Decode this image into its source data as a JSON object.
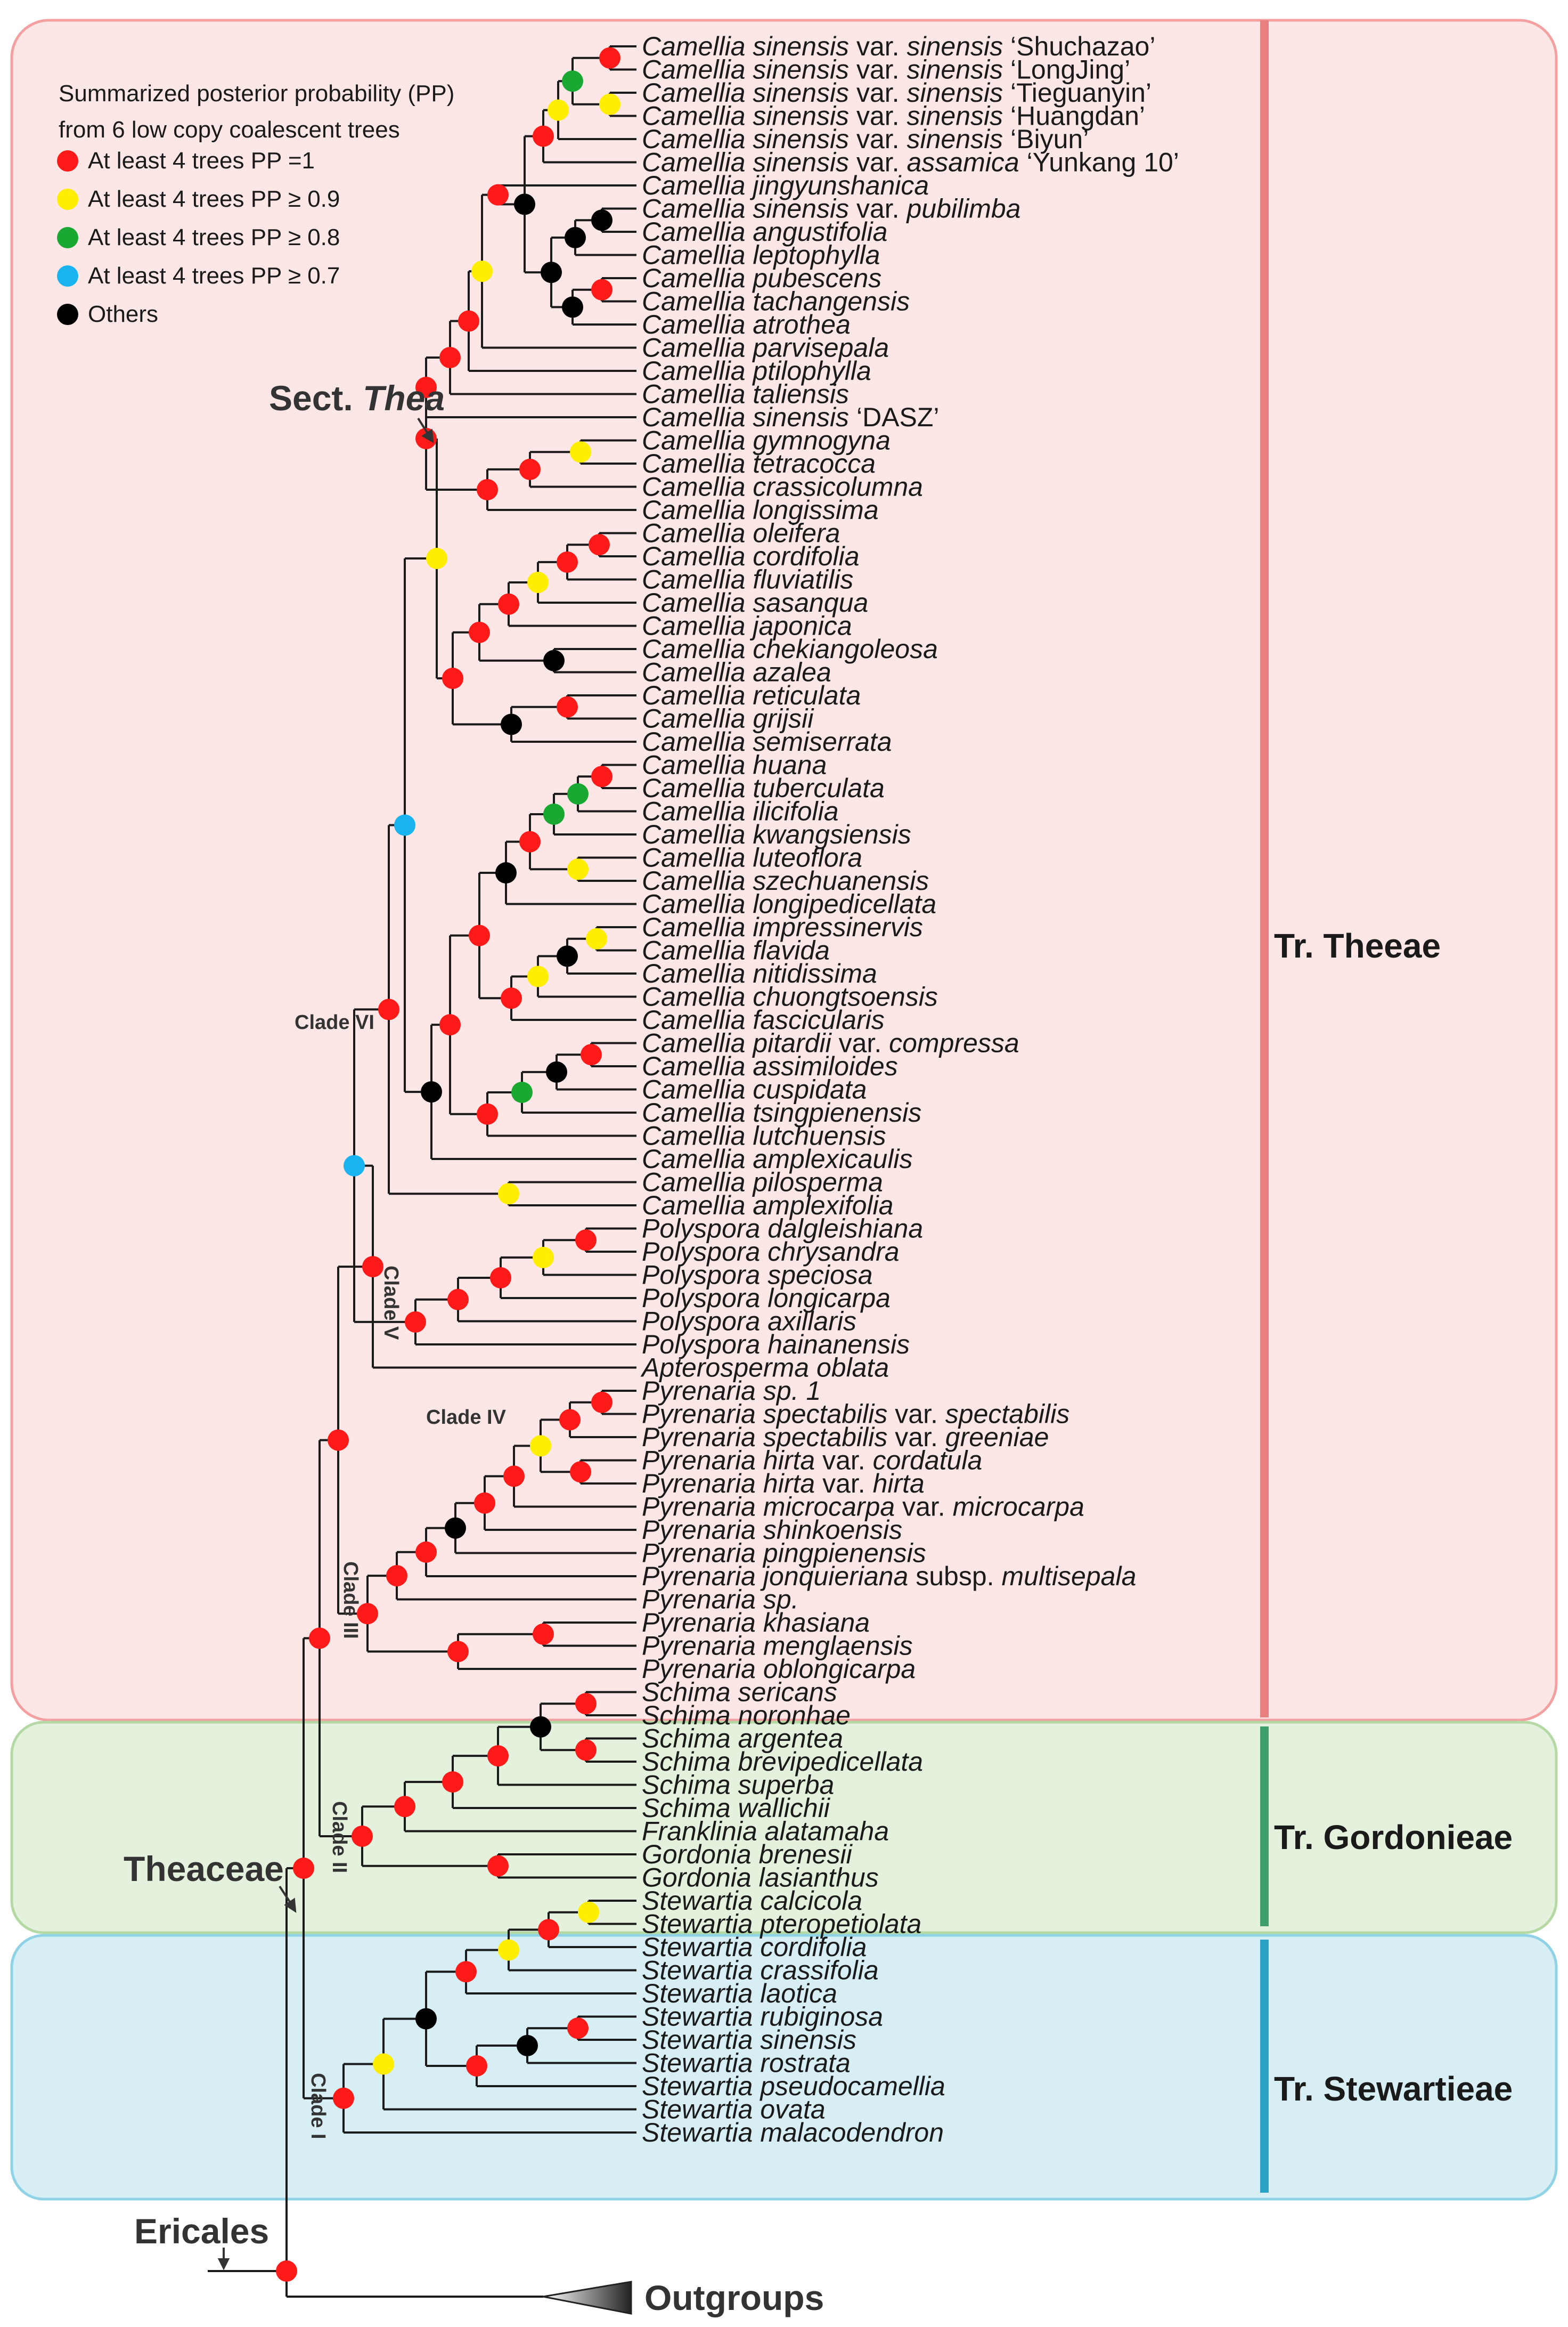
{
  "legend": {
    "title_line1": "Summarized posterior probability (PP)",
    "title_line2": "from 6 low copy coalescent trees",
    "items": [
      {
        "label": "At least 4 trees PP =1",
        "color": "#ff1a1a"
      },
      {
        "label": "At least 4 trees PP ≥ 0.9",
        "color": "#ffee00"
      },
      {
        "label": "At least 4 trees PP ≥ 0.8",
        "color": "#19a832"
      },
      {
        "label": "At least 4 trees PP ≥ 0.7",
        "color": "#19b4f0"
      },
      {
        "label": "Others",
        "color": "#000000"
      }
    ]
  },
  "tribes": [
    {
      "name": "Tr. Theeae",
      "bg": "#fde6e6",
      "border": "#f4a0a0",
      "bar": "#e88080"
    },
    {
      "name": "Tr. Gordonieae",
      "bg": "#e4f1dc",
      "border": "#b5d9a4",
      "bar": "#3f9e6a"
    },
    {
      "name": "Tr. Stewartieae",
      "bg": "#d7eef5",
      "border": "#8fd2e6",
      "bar": "#2aa3c4"
    }
  ],
  "labels": {
    "sect_thea_prefix": "Sect. ",
    "sect_thea_name": "Thea",
    "theaceae": "Theaceae",
    "ericales": "Ericales",
    "outgroups": "Outgroups",
    "clade_vi": "Clade VI",
    "clade_v": "Clade V",
    "clade_iv": "Clade IV",
    "clade_iii": "Clade III",
    "clade_ii": "Clade II",
    "clade_i": "Clade I"
  },
  "taxa": [
    {
      "genus": "Camellia",
      "epithet": "sinensis",
      "rank": "var.",
      "infra": "sinensis",
      "cultivar": "‘Shuchazao’"
    },
    {
      "genus": "Camellia",
      "epithet": "sinensis",
      "rank": "var.",
      "infra": "sinensis",
      "cultivar": "‘LongJing’"
    },
    {
      "genus": "Camellia",
      "epithet": "sinensis",
      "rank": "var.",
      "infra": "sinensis",
      "cultivar": "‘Tieguanyin’"
    },
    {
      "genus": "Camellia",
      "epithet": "sinensis",
      "rank": "var.",
      "infra": "sinensis",
      "cultivar": "‘Huangdan’"
    },
    {
      "genus": "Camellia",
      "epithet": "sinensis",
      "rank": "var.",
      "infra": "sinensis",
      "cultivar": "‘Biyun’"
    },
    {
      "genus": "Camellia",
      "epithet": "sinensis",
      "rank": "var.",
      "infra": "assamica",
      "cultivar": "‘Yunkang 10’"
    },
    {
      "genus": "Camellia",
      "epithet": "jingyunshanica"
    },
    {
      "genus": "Camellia",
      "epithet": "sinensis",
      "rank": "var.",
      "infra": "pubilimba"
    },
    {
      "genus": "Camellia",
      "epithet": "angustifolia"
    },
    {
      "genus": "Camellia",
      "epithet": "leptophylla"
    },
    {
      "genus": "Camellia",
      "epithet": "pubescens"
    },
    {
      "genus": "Camellia",
      "epithet": "tachangensis"
    },
    {
      "genus": "Camellia",
      "epithet": "atrothea"
    },
    {
      "genus": "Camellia",
      "epithet": "parvisepala"
    },
    {
      "genus": "Camellia",
      "epithet": "ptilophylla"
    },
    {
      "genus": "Camellia",
      "epithet": "taliensis"
    },
    {
      "genus": "Camellia",
      "epithet": "sinensis",
      "cultivar": "‘DASZ’"
    },
    {
      "genus": "Camellia",
      "epithet": "gymnogyna"
    },
    {
      "genus": "Camellia",
      "epithet": "tetracocca"
    },
    {
      "genus": "Camellia",
      "epithet": "crassicolumna"
    },
    {
      "genus": "Camellia",
      "epithet": "longissima"
    },
    {
      "genus": "Camellia",
      "epithet": "oleifera"
    },
    {
      "genus": "Camellia",
      "epithet": "cordifolia"
    },
    {
      "genus": "Camellia",
      "epithet": "fluviatilis"
    },
    {
      "genus": "Camellia",
      "epithet": "sasanqua"
    },
    {
      "genus": "Camellia",
      "epithet": "japonica"
    },
    {
      "genus": "Camellia",
      "epithet": "chekiangoleosa"
    },
    {
      "genus": "Camellia",
      "epithet": "azalea"
    },
    {
      "genus": "Camellia",
      "epithet": "reticulata"
    },
    {
      "genus": "Camellia",
      "epithet": "grijsii"
    },
    {
      "genus": "Camellia",
      "epithet": "semiserrata"
    },
    {
      "genus": "Camellia",
      "epithet": "huana"
    },
    {
      "genus": "Camellia",
      "epithet": "tuberculata"
    },
    {
      "genus": "Camellia",
      "epithet": "ilicifolia"
    },
    {
      "genus": "Camellia",
      "epithet": "kwangsiensis"
    },
    {
      "genus": "Camellia",
      "epithet": "luteoflora"
    },
    {
      "genus": "Camellia",
      "epithet": "szechuanensis"
    },
    {
      "genus": "Camellia",
      "epithet": "longipedicellata"
    },
    {
      "genus": "Camellia",
      "epithet": "impressinervis"
    },
    {
      "genus": "Camellia",
      "epithet": "flavida"
    },
    {
      "genus": "Camellia",
      "epithet": "nitidissima"
    },
    {
      "genus": "Camellia",
      "epithet": "chuongtsoensis"
    },
    {
      "genus": "Camellia",
      "epithet": "fascicularis"
    },
    {
      "genus": "Camellia",
      "epithet": "pitardii",
      "rank": "var.",
      "infra": "compressa"
    },
    {
      "genus": "Camellia",
      "epithet": "assimiloides"
    },
    {
      "genus": "Camellia",
      "epithet": "cuspidata"
    },
    {
      "genus": "Camellia",
      "epithet": "tsingpienensis"
    },
    {
      "genus": "Camellia",
      "epithet": "lutchuensis"
    },
    {
      "genus": "Camellia",
      "epithet": "amplexicaulis"
    },
    {
      "genus": "Camellia",
      "epithet": "pilosperma"
    },
    {
      "genus": "Camellia",
      "epithet": "amplexifolia"
    },
    {
      "genus": "Polyspora",
      "epithet": "dalgleishiana"
    },
    {
      "genus": "Polyspora",
      "epithet": "chrysandra"
    },
    {
      "genus": "Polyspora",
      "epithet": "speciosa"
    },
    {
      "genus": "Polyspora",
      "epithet": "longicarpa"
    },
    {
      "genus": "Polyspora",
      "epithet": "axillaris"
    },
    {
      "genus": "Polyspora",
      "epithet": "hainanensis"
    },
    {
      "genus": "Apterosperma",
      "epithet": "oblata"
    },
    {
      "genus": "Pyrenaria",
      "epithet": "sp. 1"
    },
    {
      "genus": "Pyrenaria",
      "epithet": "spectabilis",
      "rank": "var.",
      "infra": "spectabilis"
    },
    {
      "genus": "Pyrenaria",
      "epithet": "spectabilis",
      "rank": "var.",
      "infra": "greeniae"
    },
    {
      "genus": "Pyrenaria",
      "epithet": "hirta",
      "rank": "var.",
      "infra": "cordatula"
    },
    {
      "genus": "Pyrenaria",
      "epithet": "hirta",
      "rank": "var.",
      "infra": "hirta"
    },
    {
      "genus": "Pyrenaria",
      "epithet": "microcarpa",
      "rank": "var.",
      "infra": "microcarpa"
    },
    {
      "genus": "Pyrenaria",
      "epithet": "shinkoensis"
    },
    {
      "genus": "Pyrenaria",
      "epithet": "pingpienensis"
    },
    {
      "genus": "Pyrenaria",
      "epithet": "jonquieriana",
      "rank": "subsp.",
      "infra": "multisepala"
    },
    {
      "genus": "Pyrenaria",
      "epithet": "sp."
    },
    {
      "genus": "Pyrenaria",
      "epithet": "khasiana"
    },
    {
      "genus": "Pyrenaria",
      "epithet": "menglaensis"
    },
    {
      "genus": "Pyrenaria",
      "epithet": "oblongicarpa"
    },
    {
      "genus": "Schima",
      "epithet": "sericans"
    },
    {
      "genus": "Schima",
      "epithet": "noronhae"
    },
    {
      "genus": "Schima",
      "epithet": "argentea"
    },
    {
      "genus": "Schima",
      "epithet": "brevipedicellata"
    },
    {
      "genus": "Schima",
      "epithet": "superba"
    },
    {
      "genus": "Schima",
      "epithet": "wallichii"
    },
    {
      "genus": "Franklinia",
      "epithet": "alatamaha"
    },
    {
      "genus": "Gordonia",
      "epithet": "brenesii"
    },
    {
      "genus": "Gordonia",
      "epithet": "lasianthus"
    },
    {
      "genus": "Stewartia",
      "epithet": "calcicola"
    },
    {
      "genus": "Stewartia",
      "epithet": "pteropetiolata"
    },
    {
      "genus": "Stewartia",
      "epithet": "cordifolia"
    },
    {
      "genus": "Stewartia",
      "epithet": "crassifolia"
    },
    {
      "genus": "Stewartia",
      "epithet": "laotica"
    },
    {
      "genus": "Stewartia",
      "epithet": "rubiginosa"
    },
    {
      "genus": "Stewartia",
      "epithet": "sinensis"
    },
    {
      "genus": "Stewartia",
      "epithet": "rostrata"
    },
    {
      "genus": "Stewartia",
      "epithet": "pseudocamellia"
    },
    {
      "genus": "Stewartia",
      "epithet": "ovata"
    },
    {
      "genus": "Stewartia",
      "epithet": "malacodendron"
    }
  ]
}
